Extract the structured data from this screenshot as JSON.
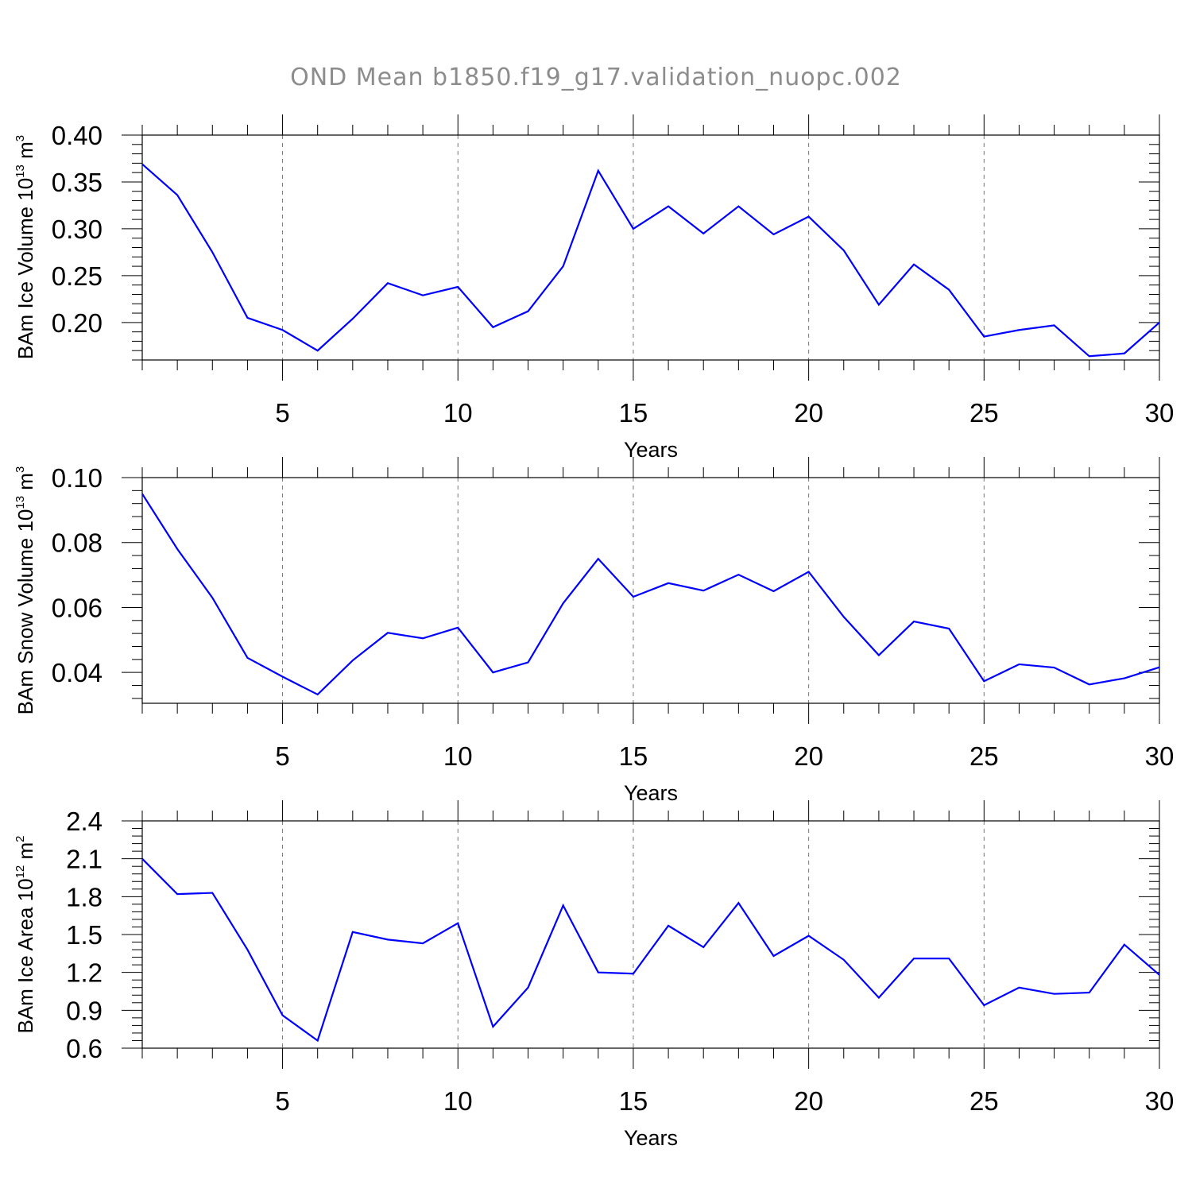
{
  "chart_data": {
    "title": "OND Mean b1850.f19_g17.validation_nuopc.002",
    "panels": [
      {
        "type": "line",
        "ylabel": {
          "prefix": "BAm Ice Volume 10",
          "exp1": "13",
          "mid": " m",
          "exp2": "3"
        },
        "xlabel": "Years",
        "xlim": [
          1,
          30
        ],
        "ylim": [
          0.16,
          0.4
        ],
        "yticks": [
          0.2,
          0.25,
          0.3,
          0.35,
          0.4
        ],
        "ytick_labels": [
          "0.20",
          "0.25",
          "0.30",
          "0.35",
          "0.40"
        ],
        "xticks": [
          5,
          10,
          15,
          20,
          25,
          30
        ],
        "xtick_labels": [
          "5",
          "10",
          "15",
          "20",
          "25",
          "30"
        ],
        "grid": "dashed vertical at major x ticks",
        "series": [
          {
            "name": "BAm Ice Volume",
            "color": "#0000ff",
            "x": [
              1,
              2,
              3,
              4,
              5,
              6,
              7,
              8,
              9,
              10,
              11,
              12,
              13,
              14,
              15,
              16,
              17,
              18,
              19,
              20,
              21,
              22,
              23,
              24,
              25,
              26,
              27,
              28,
              29,
              30
            ],
            "values": [
              0.369,
              0.336,
              0.275,
              0.205,
              0.192,
              0.17,
              0.204,
              0.242,
              0.229,
              0.238,
              0.195,
              0.212,
              0.26,
              0.362,
              0.3,
              0.324,
              0.295,
              0.324,
              0.294,
              0.313,
              0.277,
              0.219,
              0.262,
              0.235,
              0.185,
              0.192,
              0.197,
              0.164,
              0.167,
              0.2
            ]
          }
        ]
      },
      {
        "type": "line",
        "ylabel": {
          "prefix": "BAm Snow Volume 10",
          "exp1": "13",
          "mid": " m",
          "exp2": "3"
        },
        "xlabel": "Years",
        "xlim": [
          1,
          30
        ],
        "ylim": [
          0.0305,
          0.1
        ],
        "yticks": [
          0.04,
          0.06,
          0.08,
          0.1
        ],
        "ytick_labels": [
          "0.04",
          "0.06",
          "0.08",
          "0.10"
        ],
        "xticks": [
          5,
          10,
          15,
          20,
          25,
          30
        ],
        "xtick_labels": [
          "5",
          "10",
          "15",
          "20",
          "25",
          "30"
        ],
        "grid": "dashed vertical at major x ticks",
        "series": [
          {
            "name": "BAm Snow Volume",
            "color": "#0000ff",
            "x": [
              1,
              2,
              3,
              4,
              5,
              6,
              7,
              8,
              9,
              10,
              11,
              12,
              13,
              14,
              15,
              16,
              17,
              18,
              19,
              20,
              21,
              22,
              23,
              24,
              25,
              26,
              27,
              28,
              29,
              30
            ],
            "values": [
              0.095,
              0.078,
              0.063,
              0.0445,
              0.0387,
              0.0332,
              0.0437,
              0.0522,
              0.0505,
              0.0538,
              0.04,
              0.0431,
              0.0613,
              0.075,
              0.0633,
              0.0675,
              0.0652,
              0.0701,
              0.065,
              0.071,
              0.0571,
              0.0453,
              0.0557,
              0.0535,
              0.0373,
              0.0425,
              0.0415,
              0.0363,
              0.0382,
              0.0416
            ]
          }
        ]
      },
      {
        "type": "line",
        "ylabel": {
          "prefix": "BAm Ice Area 10",
          "exp1": "12",
          "mid": " m",
          "exp2": "2"
        },
        "xlabel": "Years",
        "xlim": [
          1,
          30
        ],
        "ylim": [
          0.6,
          2.4
        ],
        "yticks": [
          0.6,
          0.9,
          1.2,
          1.5,
          1.8,
          2.1,
          2.4
        ],
        "ytick_labels": [
          "0.6",
          "0.9",
          "1.2",
          "1.5",
          "1.8",
          "2.1",
          "2.4"
        ],
        "xticks": [
          5,
          10,
          15,
          20,
          25,
          30
        ],
        "xtick_labels": [
          "5",
          "10",
          "15",
          "20",
          "25",
          "30"
        ],
        "grid": "dashed vertical at major x ticks",
        "series": [
          {
            "name": "BAm Ice Area",
            "color": "#0000ff",
            "x": [
              1,
              2,
              3,
              4,
              5,
              6,
              7,
              8,
              9,
              10,
              11,
              12,
              13,
              14,
              15,
              16,
              17,
              18,
              19,
              20,
              21,
              22,
              23,
              24,
              25,
              26,
              27,
              28,
              29,
              30
            ],
            "values": [
              2.1,
              1.82,
              1.83,
              1.38,
              0.86,
              0.66,
              1.52,
              1.46,
              1.43,
              1.59,
              0.77,
              1.08,
              1.73,
              1.2,
              1.19,
              1.57,
              1.4,
              1.75,
              1.33,
              1.49,
              1.3,
              1.0,
              1.31,
              1.31,
              0.94,
              1.08,
              1.03,
              1.04,
              1.42,
              1.18
            ]
          }
        ]
      }
    ]
  }
}
